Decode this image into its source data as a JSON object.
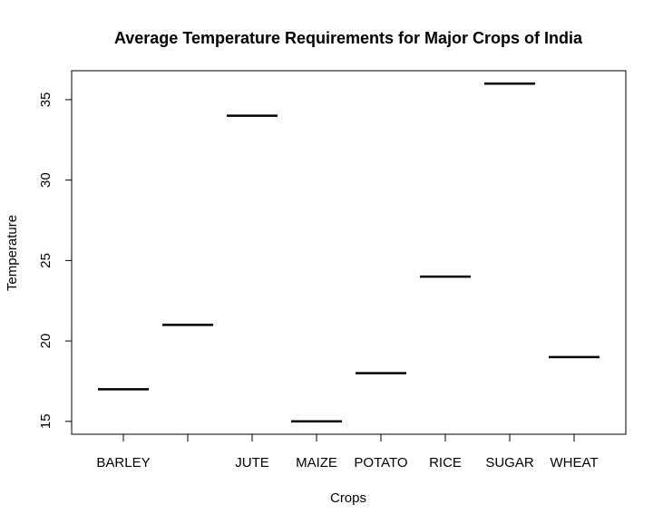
{
  "chart_data": {
    "type": "boxplot",
    "title": "Average Temperature Requirements for Major Crops of India",
    "xlabel": "Crops",
    "ylabel": "Temperature",
    "categories": [
      "BARLEY",
      "",
      "JUTE",
      "MAIZE",
      "POTATO",
      "RICE",
      "SUGAR",
      "WHEAT"
    ],
    "values": [
      17,
      21,
      34,
      15,
      18,
      24,
      36,
      19
    ],
    "ylim": [
      14.2,
      36.8
    ],
    "yticks": [
      15,
      20,
      25,
      30,
      35
    ],
    "grid": false,
    "legend": "none",
    "colors": {
      "line": "#000000",
      "frame": "#000000",
      "background": "#ffffff"
    }
  }
}
